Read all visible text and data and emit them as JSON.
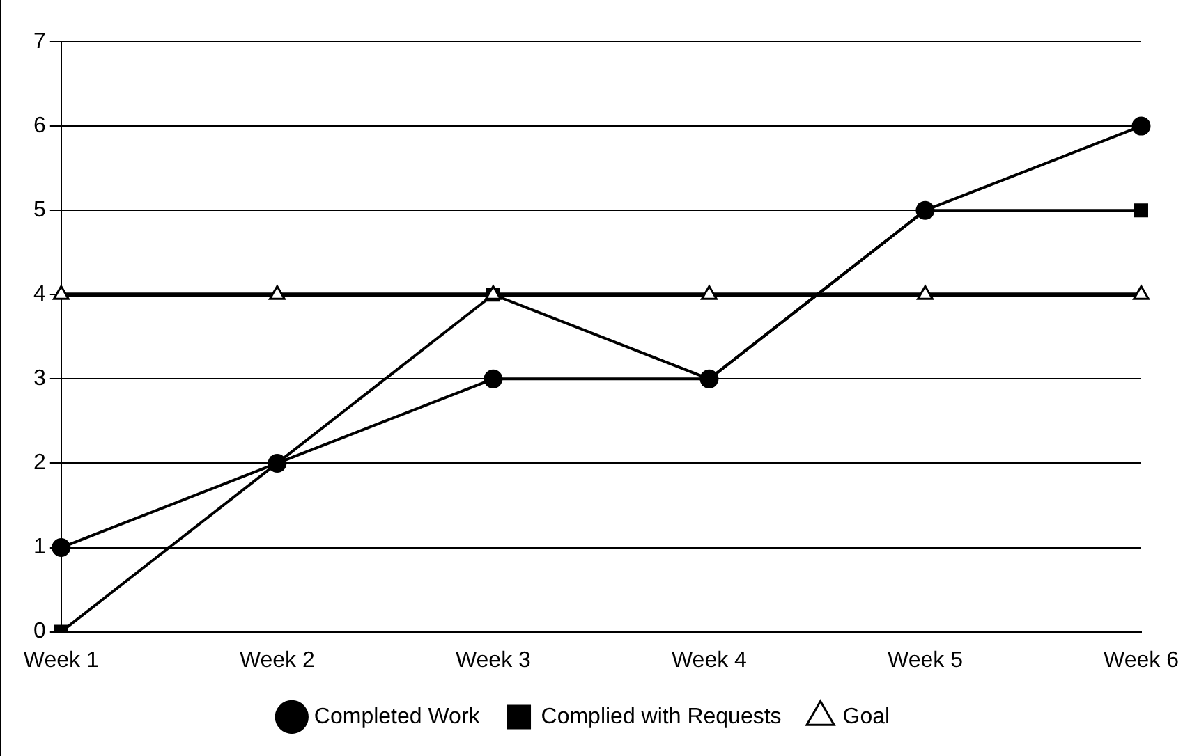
{
  "chart_data": {
    "type": "line",
    "categories": [
      "Week 1",
      "Week 2",
      "Week 3",
      "Week 4",
      "Week 5",
      "Week 6"
    ],
    "series": [
      {
        "name": "Completed Work",
        "color": "#000000",
        "marker": "circle",
        "values": [
          1,
          2,
          3,
          3,
          5,
          6
        ]
      },
      {
        "name": "Complied with Requests",
        "color": "#000000",
        "marker": "square",
        "values": [
          0,
          2,
          4,
          3,
          5,
          5
        ]
      },
      {
        "name": "Goal",
        "color": "#000000",
        "marker": "triangle",
        "values": [
          4,
          4,
          4,
          4,
          4,
          4
        ]
      }
    ],
    "ylim": [
      0,
      7
    ],
    "yticks": [
      0,
      1,
      2,
      3,
      4,
      5,
      6,
      7
    ],
    "grid": "y",
    "legend": "bottom",
    "line_style": "solid"
  }
}
